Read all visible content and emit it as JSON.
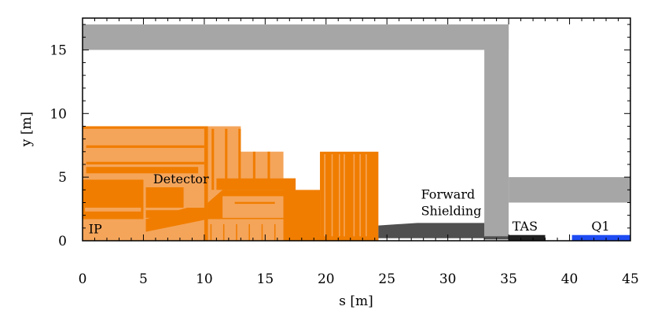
{
  "chart_data": {
    "type": "diagram",
    "xlabel": "s [m]",
    "ylabel": "y [m]",
    "xlim": [
      0,
      45
    ],
    "ylim": [
      0,
      17.5
    ],
    "x_ticks": [
      0,
      5,
      10,
      15,
      20,
      25,
      30,
      35,
      40,
      45
    ],
    "y_ticks": [
      0,
      5,
      10,
      15
    ],
    "x_tick_labels": [
      "0",
      "5",
      "10",
      "15",
      "20",
      "25",
      "30",
      "35",
      "40",
      "45"
    ],
    "y_tick_labels": [
      "0",
      "5",
      "10",
      "15"
    ],
    "colors": {
      "detector_light": "#f5a55a",
      "detector_dark": "#f07d00",
      "cavern_wall": "#a6a6a6",
      "forward_shielding": "#505050",
      "tas": "#1f1f1f",
      "q1": "#1f4cf2"
    },
    "regions": [
      {
        "name": "cavern-wall-horizontal",
        "color": "#a6a6a6",
        "x": [
          0,
          35
        ],
        "y": [
          15,
          17
        ]
      },
      {
        "name": "cavern-wall-vertical",
        "color": "#a6a6a6",
        "x": [
          33,
          35
        ],
        "y": [
          0.3,
          17
        ]
      },
      {
        "name": "tunnel-wall",
        "color": "#a6a6a6",
        "x": [
          35,
          45
        ],
        "y": [
          3,
          5
        ]
      },
      {
        "name": "detector-left-block",
        "color": "#f5a55a",
        "x": [
          0,
          13
        ],
        "y": [
          0,
          9
        ]
      },
      {
        "name": "detector-middle-block",
        "color": "#f5a55a",
        "x": [
          13,
          16.5
        ],
        "y": [
          0,
          7
        ]
      },
      {
        "name": "detector-right-block",
        "color": "#f07d00",
        "x": [
          16.5,
          19.5
        ],
        "y": [
          0,
          4
        ]
      },
      {
        "name": "forward-detector-block",
        "color": "#f07d00",
        "x": [
          19.5,
          24.3
        ],
        "y": [
          0,
          7
        ]
      },
      {
        "name": "forward-shielding",
        "color": "#505050",
        "x": [
          24.3,
          33
        ],
        "y": [
          0,
          1.4
        ]
      },
      {
        "name": "tas",
        "color": "#1f1f1f",
        "x": [
          35,
          38
        ],
        "y": [
          0,
          0.45
        ]
      },
      {
        "name": "q1",
        "color": "#1f4cf2",
        "x": [
          40.2,
          45
        ],
        "y": [
          0,
          0.45
        ]
      }
    ],
    "annotations": [
      {
        "text": "IP",
        "x": 0.5,
        "y": 0.6
      },
      {
        "text": "Detector",
        "x": 5.8,
        "y": 4.5
      },
      {
        "text": "Forward",
        "x": 27.8,
        "y": 3.3
      },
      {
        "text": "Shielding",
        "x": 27.8,
        "y": 2.0
      },
      {
        "text": "TAS",
        "x": 35.3,
        "y": 0.8
      },
      {
        "text": "Q1",
        "x": 41.8,
        "y": 0.8
      }
    ]
  }
}
